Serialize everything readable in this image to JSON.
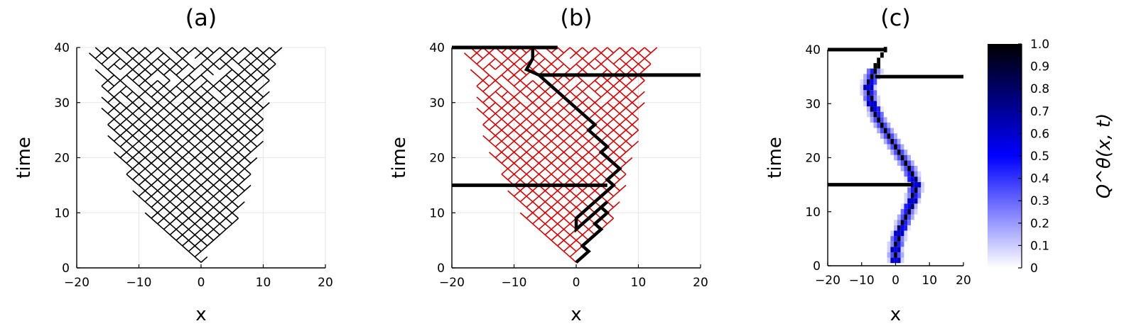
{
  "chart_data": [
    {
      "panel": "(a)",
      "type": "line",
      "title": "(a)",
      "xlabel": "x",
      "ylabel": "time",
      "xlim": [
        -20,
        20
      ],
      "ylim": [
        0,
        40
      ],
      "xticks": [
        "−20",
        "−10",
        "0",
        "10",
        "20"
      ],
      "yticks": [
        "0",
        "10",
        "20",
        "30",
        "40"
      ],
      "grid": true,
      "description_of_series": "lattice of all diagonal paths from (0,0) widening upward; left edge reaches about x=-18 at t=40, right edge about x=13",
      "lattice_color": "#000000",
      "width_profile": {
        "t": [
          0,
          8,
          16,
          24,
          32,
          40
        ],
        "left": [
          0,
          -8,
          -12,
          -15,
          -16,
          -18
        ],
        "right": [
          0,
          6,
          8,
          10,
          11,
          13
        ]
      }
    },
    {
      "panel": "(b)",
      "type": "line",
      "title": "(b)",
      "xlabel": "x",
      "ylabel": "time",
      "xlim": [
        -20,
        20
      ],
      "ylim": [
        0,
        40
      ],
      "xticks": [
        "−20",
        "−10",
        "0",
        "10",
        "20"
      ],
      "yticks": [
        "0",
        "10",
        "20",
        "30",
        "40"
      ],
      "grid": true,
      "lattice_color": "#e00000",
      "walls": [
        {
          "t": 40,
          "x_from": -20,
          "x_to": -3
        },
        {
          "t": 35,
          "x_from": -6,
          "x_to": 20
        },
        {
          "t": 15,
          "x_from": -20,
          "x_to": 5
        }
      ],
      "path": {
        "x": [
          0,
          2,
          1,
          4,
          3,
          5,
          4,
          5,
          2,
          3,
          0,
          0,
          2,
          5,
          6,
          5,
          7,
          6,
          4,
          5,
          2,
          3,
          0,
          -4,
          -6,
          -8,
          -7,
          -7
        ],
        "t": [
          1,
          3,
          4,
          7,
          8,
          10,
          11,
          12,
          9,
          10,
          7,
          9,
          11,
          14,
          15,
          16,
          18,
          19,
          21,
          22,
          25,
          26,
          29,
          33,
          35,
          36,
          38,
          40
        ]
      }
    },
    {
      "panel": "(c)",
      "type": "heatmap",
      "title": "(c)",
      "xlabel": "x",
      "ylabel": "time",
      "xlim": [
        -20,
        20
      ],
      "ylim": [
        0,
        40
      ],
      "xticks": [
        "−20",
        "−10",
        "0",
        "10",
        "20"
      ],
      "yticks": [
        "0",
        "10",
        "20",
        "30",
        "40"
      ],
      "walls": [
        {
          "t": 40,
          "x_from": -20,
          "x_to": -3
        },
        {
          "t": 35,
          "x_from": -6,
          "x_to": 20
        },
        {
          "t": 15,
          "x_from": -20,
          "x_to": 5
        }
      ],
      "center_path": {
        "t": [
          0,
          3,
          6,
          9,
          12,
          15,
          18,
          21,
          24,
          27,
          30,
          33,
          35,
          38,
          40
        ],
        "x": [
          0,
          0,
          1,
          3,
          5,
          6,
          4,
          1,
          -2,
          -5,
          -7,
          -8,
          -7,
          -5,
          -3
        ]
      },
      "colorbar": {
        "label": "Q^θ(x, t)",
        "ticks": [
          "0",
          "0.1",
          "0.2",
          "0.3",
          "0.4",
          "0.5",
          "0.6",
          "0.7",
          "0.8",
          "0.9",
          "1.0"
        ],
        "range": [
          0,
          1
        ],
        "colors": [
          "#ffffff",
          "#0000ff",
          "#000000"
        ]
      }
    }
  ]
}
